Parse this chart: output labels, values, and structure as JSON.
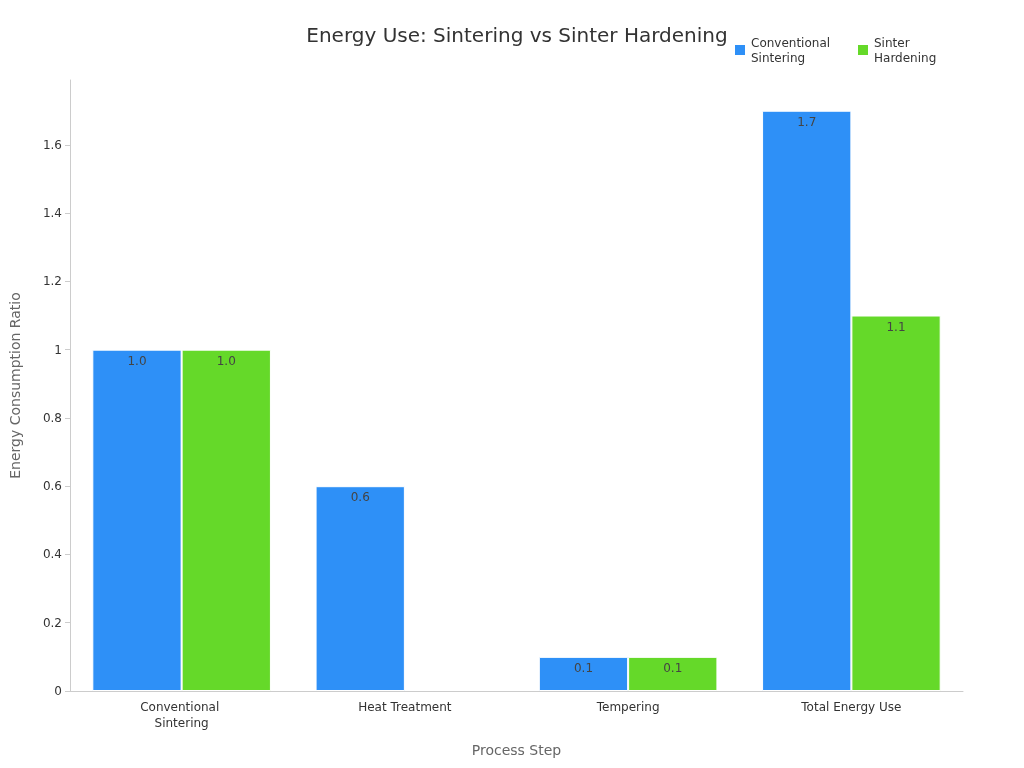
{
  "chart_data": {
    "type": "bar",
    "title": "Energy Use: Sintering vs Sinter Hardening",
    "xlabel": "Process Step",
    "ylabel": "Energy Consumption Ratio",
    "categories": [
      "Conventional Sintering",
      "Heat Treatment",
      "Tempering",
      "Total Energy Use"
    ],
    "series": [
      {
        "name": "Conventional Sintering",
        "color": "#2e90f7",
        "values": [
          1.0,
          0.6,
          0.1,
          1.7
        ],
        "value_labels": [
          "1.0",
          "0.6",
          "0.1",
          "1.7"
        ]
      },
      {
        "name": "Sinter Hardening",
        "color": "#65d929",
        "values": [
          1.0,
          null,
          0.1,
          1.1
        ],
        "value_labels": [
          "1.0",
          null,
          "0.1",
          "1.1"
        ]
      }
    ],
    "ylim": [
      0,
      1.79
    ],
    "yticks": [
      0,
      0.2,
      0.4,
      0.6,
      0.8,
      1,
      1.2,
      1.4,
      1.6
    ],
    "grid": false,
    "legend": "top right"
  }
}
